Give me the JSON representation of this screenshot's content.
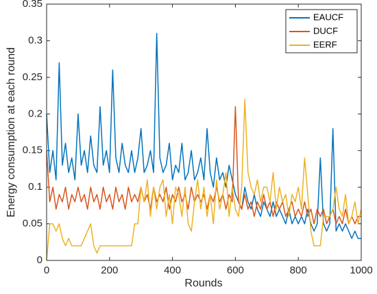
{
  "chart_data": {
    "type": "line",
    "xlabel": "Rounds",
    "ylabel": "Energy consumption at each round",
    "x": [
      0,
      10,
      20,
      30,
      40,
      50,
      60,
      70,
      80,
      90,
      100,
      110,
      120,
      130,
      140,
      150,
      160,
      170,
      180,
      190,
      200,
      210,
      220,
      230,
      240,
      250,
      260,
      270,
      280,
      290,
      300,
      310,
      320,
      330,
      340,
      350,
      360,
      370,
      380,
      390,
      400,
      410,
      420,
      430,
      440,
      450,
      460,
      470,
      480,
      490,
      500,
      510,
      520,
      530,
      540,
      550,
      560,
      570,
      580,
      590,
      600,
      610,
      620,
      630,
      640,
      650,
      660,
      670,
      680,
      690,
      700,
      710,
      720,
      730,
      740,
      750,
      760,
      770,
      780,
      790,
      800,
      810,
      820,
      830,
      840,
      850,
      860,
      870,
      880,
      890,
      900,
      910,
      920,
      930,
      940,
      950,
      960,
      970,
      980,
      990,
      1000
    ],
    "series": [
      {
        "name": "EAUCF",
        "color": "#0072BD",
        "values": [
          0.2,
          0.12,
          0.15,
          0.11,
          0.27,
          0.13,
          0.16,
          0.12,
          0.14,
          0.11,
          0.2,
          0.13,
          0.15,
          0.12,
          0.17,
          0.13,
          0.12,
          0.21,
          0.13,
          0.15,
          0.12,
          0.26,
          0.14,
          0.12,
          0.16,
          0.13,
          0.12,
          0.15,
          0.12,
          0.14,
          0.18,
          0.12,
          0.13,
          0.15,
          0.12,
          0.31,
          0.14,
          0.12,
          0.13,
          0.16,
          0.11,
          0.13,
          0.12,
          0.16,
          0.11,
          0.12,
          0.15,
          0.11,
          0.12,
          0.14,
          0.11,
          0.18,
          0.12,
          0.1,
          0.14,
          0.11,
          0.12,
          0.1,
          0.13,
          0.11,
          0.09,
          0.08,
          0.07,
          0.1,
          0.08,
          0.07,
          0.09,
          0.07,
          0.06,
          0.08,
          0.07,
          0.06,
          0.08,
          0.06,
          0.07,
          0.06,
          0.05,
          0.07,
          0.05,
          0.06,
          0.05,
          0.06,
          0.05,
          0.07,
          0.05,
          0.04,
          0.05,
          0.14,
          0.05,
          0.04,
          0.05,
          0.18,
          0.04,
          0.05,
          0.04,
          0.05,
          0.04,
          0.03,
          0.04,
          0.03,
          0.03
        ]
      },
      {
        "name": "DUCF",
        "color": "#D95319",
        "values": [
          0.15,
          0.08,
          0.1,
          0.07,
          0.09,
          0.08,
          0.1,
          0.07,
          0.09,
          0.08,
          0.1,
          0.08,
          0.09,
          0.07,
          0.1,
          0.08,
          0.09,
          0.07,
          0.1,
          0.08,
          0.09,
          0.07,
          0.1,
          0.08,
          0.09,
          0.07,
          0.1,
          0.08,
          0.09,
          0.08,
          0.1,
          0.08,
          0.09,
          0.07,
          0.1,
          0.08,
          0.09,
          0.08,
          0.1,
          0.07,
          0.09,
          0.08,
          0.1,
          0.08,
          0.09,
          0.07,
          0.1,
          0.08,
          0.09,
          0.08,
          0.09,
          0.07,
          0.09,
          0.08,
          0.1,
          0.08,
          0.09,
          0.07,
          0.09,
          0.08,
          0.21,
          0.08,
          0.07,
          0.09,
          0.07,
          0.08,
          0.06,
          0.08,
          0.07,
          0.09,
          0.07,
          0.08,
          0.06,
          0.08,
          0.07,
          0.08,
          0.06,
          0.07,
          0.08,
          0.06,
          0.07,
          0.06,
          0.08,
          0.06,
          0.07,
          0.05,
          0.07,
          0.06,
          0.07,
          0.05,
          0.06,
          0.07,
          0.05,
          0.06,
          0.05,
          0.07,
          0.05,
          0.06,
          0.05,
          0.06,
          0.06
        ]
      },
      {
        "name": "EERF",
        "color": "#EDB120",
        "values": [
          0,
          0.05,
          0.05,
          0.04,
          0.05,
          0.03,
          0.02,
          0.03,
          0.02,
          0.02,
          0.02,
          0.02,
          0.03,
          0.04,
          0.05,
          0.02,
          0.01,
          0.02,
          0.02,
          0.02,
          0.02,
          0.02,
          0.02,
          0.02,
          0.02,
          0.02,
          0.02,
          0.02,
          0.05,
          0.05,
          0.1,
          0.08,
          0.11,
          0.06,
          0.1,
          0.07,
          0.1,
          0.11,
          0.06,
          0.09,
          0.05,
          0.1,
          0.09,
          0.06,
          0.1,
          0.05,
          0.04,
          0.08,
          0.11,
          0.07,
          0.1,
          0.06,
          0.09,
          0.05,
          0.11,
          0.07,
          0.09,
          0.12,
          0.06,
          0.1,
          0.07,
          0.06,
          0.1,
          0.22,
          0.12,
          0.1,
          0.09,
          0.11,
          0.08,
          0.1,
          0.1,
          0.08,
          0.12,
          0.07,
          0.1,
          0.08,
          0.09,
          0.06,
          0.09,
          0.08,
          0.1,
          0.07,
          0.14,
          0.09,
          0.04,
          0.02,
          0.02,
          0.02,
          0.06,
          0.06,
          0.06,
          0.07,
          0.1,
          0.07,
          0.06,
          0.09,
          0.05,
          0.06,
          0.08,
          0.05,
          0.07
        ]
      }
    ],
    "xlim": [
      0,
      1000
    ],
    "xticks": [
      0,
      200,
      400,
      600,
      800,
      1000
    ],
    "ylim": [
      0,
      0.35
    ],
    "yticks": [
      0,
      0.05,
      0.1,
      0.15,
      0.2,
      0.25,
      0.3,
      0.35
    ],
    "legend": "upper right"
  }
}
